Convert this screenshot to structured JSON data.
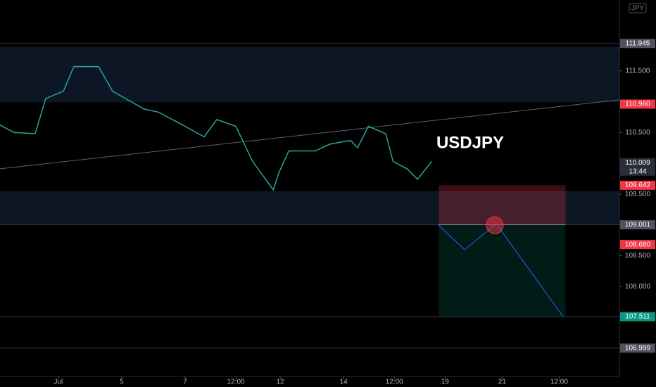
{
  "chart_data": {
    "type": "line",
    "symbol": "USDJPY",
    "currency": "JPY",
    "countdown": "13:44",
    "color": "#26a69a",
    "xlim": [
      -1.84,
      17.7
    ],
    "ylim": [
      106.54,
      112.65
    ],
    "xticks": [
      {
        "value": 0,
        "label": "Jul"
      },
      {
        "value": 2,
        "label": "5"
      },
      {
        "value": 4,
        "label": "7"
      },
      {
        "value": 5.6,
        "label": "12:00"
      },
      {
        "value": 7,
        "label": "12"
      },
      {
        "value": 9,
        "label": "14"
      },
      {
        "value": 10.6,
        "label": "12:00"
      },
      {
        "value": 12.2,
        "label": "19"
      },
      {
        "value": 14,
        "label": "21"
      },
      {
        "value": 15.8,
        "label": "12:00"
      }
    ],
    "yticks": [
      {
        "value": 111.5,
        "label": "111.500"
      },
      {
        "value": 110.5,
        "label": "110.500"
      },
      {
        "value": 109.5,
        "label": "109.500"
      },
      {
        "value": 108.5,
        "label": "108.500"
      },
      {
        "value": 108.0,
        "label": "108.000"
      }
    ],
    "x": [
      -1.84,
      -1.4,
      -0.73,
      -0.4,
      0.16,
      0.49,
      1.27,
      1.71,
      2.71,
      3.16,
      4.0,
      4.6,
      5.0,
      5.6,
      6.13,
      6.78,
      6.96,
      7.27,
      8.11,
      8.56,
      9.22,
      9.44,
      9.78,
      10.33,
      10.56,
      11.0,
      11.33,
      11.78
    ],
    "values": [
      110.62,
      110.5,
      110.48,
      111.05,
      111.17,
      111.57,
      111.57,
      111.17,
      110.88,
      110.83,
      110.6,
      110.43,
      110.71,
      110.6,
      110.03,
      109.57,
      109.85,
      110.2,
      110.2,
      110.31,
      110.37,
      110.25,
      110.6,
      110.48,
      110.03,
      109.91,
      109.74,
      110.03
    ],
    "zones": [
      [
        111.89,
        110.99
      ],
      [
        109.55,
        109.0
      ]
    ],
    "trendline": {
      "x": [
        -1.84,
        17.7
      ],
      "values": [
        109.91,
        111.03
      ]
    },
    "position": {
      "x": [
        12.0,
        16.0
      ],
      "stop": 109.642,
      "entry": 109.001,
      "target": 107.511
    },
    "price_labels": [
      {
        "value": 111.945,
        "label": "111.945",
        "color": "#50535e"
      },
      {
        "value": 110.96,
        "label": "110.960",
        "color": "#f23645"
      },
      {
        "value": 110.009,
        "label": "110.009",
        "color": "#2a2e39"
      },
      {
        "value": 109.642,
        "label": "109.642",
        "color": "#f23645"
      },
      {
        "value": 109.001,
        "label": "109.001",
        "color": "#50535e"
      },
      {
        "value": 108.68,
        "label": "108.680",
        "color": "#f23645"
      },
      {
        "value": 107.511,
        "label": "107.511",
        "color": "#089981"
      },
      {
        "value": 106.999,
        "label": "106.999",
        "color": "#50535e"
      }
    ]
  }
}
